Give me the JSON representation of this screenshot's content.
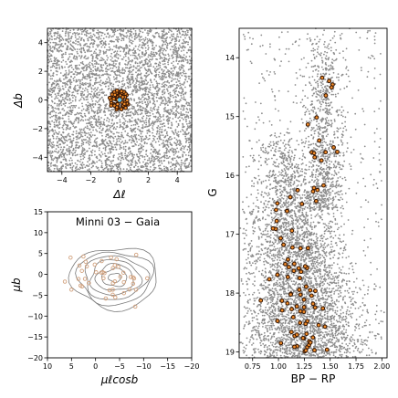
{
  "figure": {
    "annotation": "Minni 03 − Gaia"
  },
  "colors": {
    "field": "#8c8c8c",
    "member_edge": "#3b1a06",
    "member_fill": "#f28c28",
    "member_soft": "#d2a27e",
    "highlight": "#5bc0eb",
    "contour": "#7a7a7a"
  },
  "chart_data": [
    {
      "type": "scatter",
      "panel": "sky",
      "xlabel": "Δℓ",
      "ylabel": "Δb",
      "xlim": [
        -5.0,
        5.0
      ],
      "ylim": [
        -5.0,
        5.0
      ],
      "xticks": [
        -4,
        -2,
        0,
        2,
        4
      ],
      "yticks": [
        -4,
        -2,
        0,
        2,
        4
      ],
      "field_stars": {
        "count": 4200,
        "x_range": [
          -5,
          5
        ],
        "y_range": [
          -5,
          5
        ]
      },
      "members": {
        "count": 60,
        "center": [
          0.0,
          0.0
        ],
        "radius": 0.7
      },
      "highlight_point": [
        0.0,
        0.0
      ]
    },
    {
      "type": "scatter",
      "panel": "proper-motion",
      "xlabel": "μℓcosb",
      "ylabel": "μb",
      "xlim": [
        10,
        -20
      ],
      "ylim": [
        -20,
        15
      ],
      "xticks": [
        10,
        5,
        0,
        -5,
        -10,
        -15,
        -20
      ],
      "yticks": [
        -20,
        -15,
        -10,
        -5,
        0,
        5,
        10,
        15
      ],
      "members": {
        "count": 45,
        "center": [
          -4.0,
          -1.0
        ]
      },
      "contours_center": [
        -4.0,
        -0.8
      ],
      "contour_levels": 7
    },
    {
      "type": "scatter",
      "panel": "cmd",
      "xlabel": "BP − RP",
      "ylabel": "G",
      "xlim": [
        0.62,
        2.05
      ],
      "ylim": [
        19.1,
        13.5
      ],
      "xticks": [
        0.75,
        1.0,
        1.25,
        1.5,
        1.75,
        2.0
      ],
      "yticks": [
        14,
        15,
        16,
        17,
        18,
        19
      ],
      "field_stars": {
        "count": 5200
      },
      "members": {
        "count": 95
      }
    }
  ]
}
